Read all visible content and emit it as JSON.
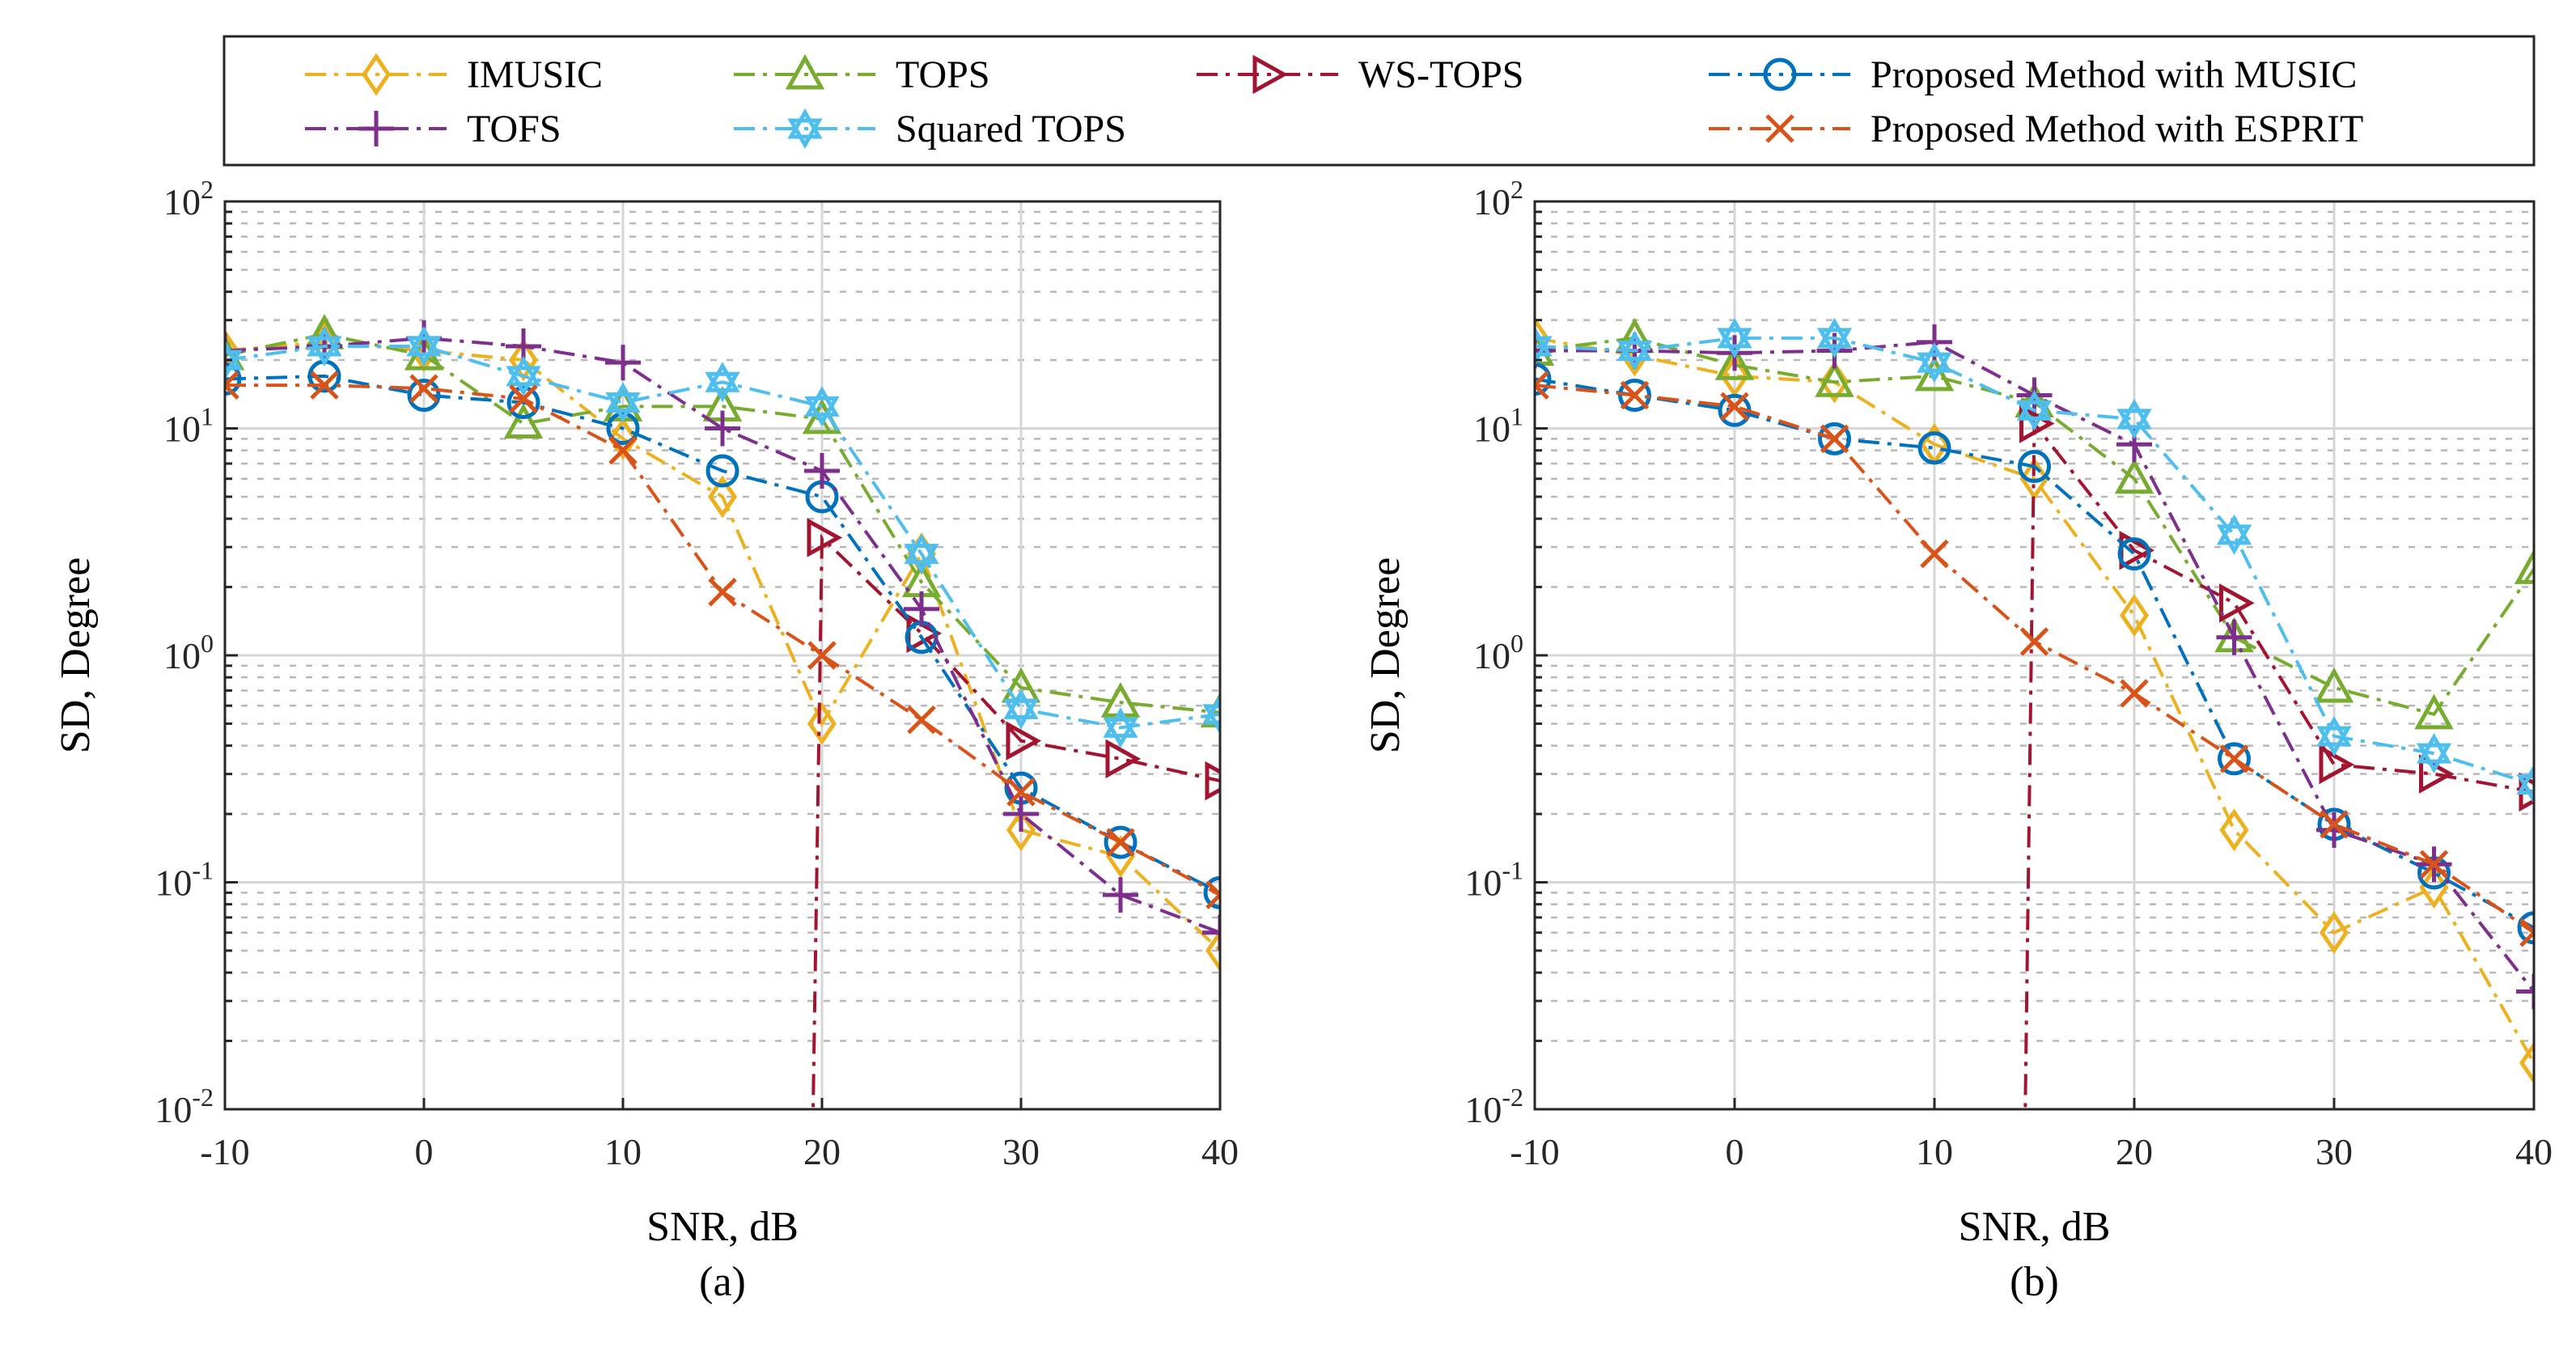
{
  "chart_data": [
    {
      "type": "line",
      "caption": "(a)",
      "xlabel": "SNR, dB",
      "ylabel": "SD, Degree",
      "xlim": [
        -10,
        40
      ],
      "ylim": [
        0.01,
        100
      ],
      "yscale": "log",
      "grid": true,
      "xticks": [
        "-10",
        "0",
        "10",
        "20",
        "30",
        "40"
      ],
      "yticks": [
        {
          "base": "10",
          "exp": "-2"
        },
        {
          "base": "10",
          "exp": "-1"
        },
        {
          "base": "10",
          "exp": "0"
        },
        {
          "base": "10",
          "exp": "1"
        },
        {
          "base": "10",
          "exp": "2"
        }
      ],
      "series": [
        {
          "name": "IMUSIC",
          "x": [
            -10,
            -5,
            0,
            5,
            10,
            15,
            20,
            25,
            30,
            35,
            40
          ],
          "values": [
            22,
            24,
            22,
            20,
            9,
            5,
            0.5,
            2.8,
            0.17,
            0.13,
            0.05
          ]
        },
        {
          "name": "TOPS",
          "x": [
            -10,
            -5,
            0,
            5,
            10,
            15,
            20,
            25,
            30,
            35,
            40
          ],
          "values": [
            21,
            26,
            21,
            10.5,
            12.5,
            12.5,
            11,
            2.1,
            0.72,
            0.62,
            0.56
          ]
        },
        {
          "name": "WS-TOPS",
          "x": [
            19.5,
            20,
            25,
            30,
            35,
            40
          ],
          "values": [
            0.005,
            3.3,
            1.25,
            0.42,
            0.35,
            0.28
          ]
        },
        {
          "name": "Proposed Method with MUSIC",
          "x": [
            -10,
            -5,
            0,
            5,
            10,
            15,
            20,
            25,
            30,
            35,
            40
          ],
          "values": [
            16.5,
            17,
            14,
            13,
            10,
            6.5,
            5,
            1.2,
            0.26,
            0.15,
            0.09
          ]
        },
        {
          "name": "TOFS",
          "x": [
            -10,
            -5,
            0,
            5,
            10,
            15,
            20,
            25,
            30,
            35,
            40
          ],
          "values": [
            22,
            23,
            25,
            23,
            19.5,
            10,
            6.5,
            1.6,
            0.2,
            0.088,
            0.06
          ]
        },
        {
          "name": "Squared TOPS",
          "x": [
            -10,
            -5,
            0,
            5,
            10,
            15,
            20,
            25,
            30,
            35,
            40
          ],
          "values": [
            20,
            23,
            23,
            17,
            13,
            16,
            12.5,
            2.8,
            0.58,
            0.48,
            0.55
          ]
        },
        {
          "name": "Proposed Method with ESPRIT",
          "x": [
            -10,
            -5,
            0,
            5,
            10,
            15,
            20,
            25,
            30,
            35,
            40
          ],
          "values": [
            15.5,
            15.5,
            15,
            13.5,
            8,
            1.9,
            1.0,
            0.52,
            0.25,
            0.15,
            0.088
          ]
        }
      ]
    },
    {
      "type": "line",
      "caption": "(b)",
      "xlabel": "SNR, dB",
      "ylabel": "SD, Degree",
      "xlim": [
        -10,
        40
      ],
      "ylim": [
        0.01,
        100
      ],
      "yscale": "log",
      "grid": true,
      "xticks": [
        "-10",
        "0",
        "10",
        "20",
        "30",
        "40"
      ],
      "yticks": [
        {
          "base": "10",
          "exp": "-2"
        },
        {
          "base": "10",
          "exp": "-1"
        },
        {
          "base": "10",
          "exp": "0"
        },
        {
          "base": "10",
          "exp": "1"
        },
        {
          "base": "10",
          "exp": "2"
        }
      ],
      "series": [
        {
          "name": "IMUSIC",
          "x": [
            -10,
            -5,
            0,
            5,
            10,
            15,
            20,
            25,
            30,
            35,
            40
          ],
          "values": [
            25,
            21,
            17,
            16,
            8.5,
            6,
            1.5,
            0.17,
            0.06,
            0.095,
            0.016
          ]
        },
        {
          "name": "TOPS",
          "x": [
            -10,
            -5,
            0,
            5,
            10,
            15,
            20,
            25,
            30,
            35,
            40
          ],
          "values": [
            22,
            25,
            19,
            16,
            17,
            13,
            6,
            1.2,
            0.72,
            0.55,
            2.4
          ]
        },
        {
          "name": "WS-TOPS",
          "x": [
            14.5,
            15,
            20,
            25,
            30,
            35,
            40
          ],
          "values": [
            0.005,
            10.5,
            2.9,
            1.7,
            0.33,
            0.3,
            0.25
          ]
        },
        {
          "name": "Proposed Method with MUSIC",
          "x": [
            -10,
            -5,
            0,
            5,
            10,
            15,
            20,
            25,
            30,
            35,
            40
          ],
          "values": [
            16.5,
            14,
            12,
            9,
            8.2,
            6.8,
            2.8,
            0.35,
            0.18,
            0.11,
            0.063
          ]
        },
        {
          "name": "TOFS",
          "x": [
            -10,
            -5,
            0,
            5,
            10,
            15,
            20,
            25,
            30,
            35,
            40
          ],
          "values": [
            22,
            22,
            21.5,
            22,
            24,
            14,
            8.5,
            1.2,
            0.17,
            0.12,
            0.033
          ]
        },
        {
          "name": "Squared TOPS",
          "x": [
            -10,
            -5,
            0,
            5,
            10,
            15,
            20,
            25,
            30,
            35,
            40
          ],
          "values": [
            23,
            22,
            25,
            25,
            19.5,
            12,
            11,
            3.4,
            0.44,
            0.37,
            0.27
          ]
        },
        {
          "name": "Proposed Method with ESPRIT",
          "x": [
            -10,
            -5,
            0,
            5,
            10,
            15,
            20,
            25,
            30,
            35,
            40
          ],
          "values": [
            15.5,
            14,
            12.5,
            9,
            2.8,
            1.15,
            0.68,
            0.35,
            0.18,
            0.12,
            0.06
          ]
        }
      ]
    }
  ],
  "legend": {
    "placement": "top",
    "entries": [
      {
        "label": "IMUSIC",
        "color": "#EDB120",
        "marker": "diamond"
      },
      {
        "label": "TOPS",
        "color": "#77AC30",
        "marker": "triangle-up"
      },
      {
        "label": "WS-TOPS",
        "color": "#A2142F",
        "marker": "triangle-right"
      },
      {
        "label": "Proposed Method with MUSIC",
        "color": "#0072BD",
        "marker": "circle"
      },
      {
        "label": "TOFS",
        "color": "#7E2F8E",
        "marker": "plus"
      },
      {
        "label": "Squared TOPS",
        "color": "#4DBEEE",
        "marker": "hexagram"
      },
      {
        "label": "Proposed Method with ESPRIT",
        "color": "#D95319",
        "marker": "x"
      }
    ]
  }
}
